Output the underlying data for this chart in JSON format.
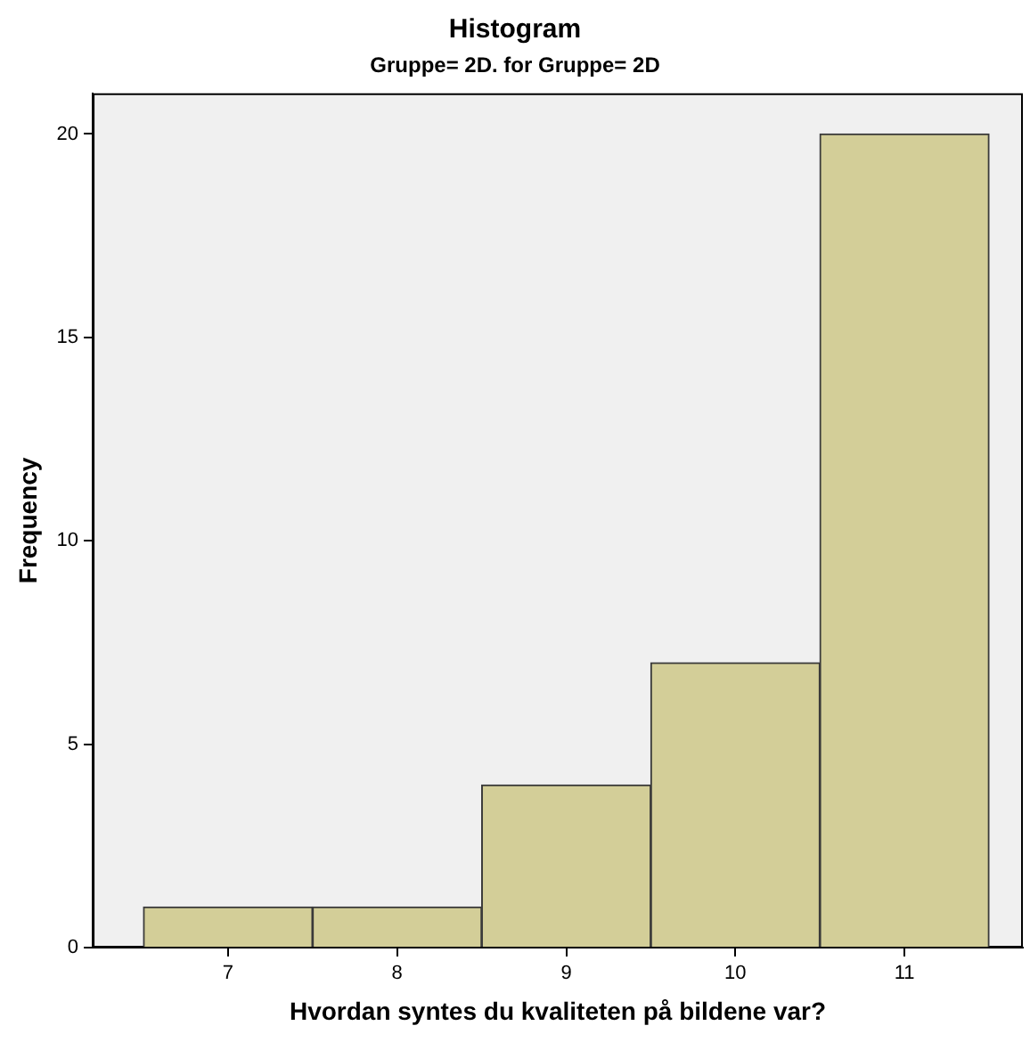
{
  "chart_data": {
    "type": "histogram",
    "title": "Histogram",
    "subtitle": "Gruppe= 2D. for Gruppe= 2D",
    "xlabel": "Hvordan syntes du kvaliteten på bildene var?",
    "ylabel": "Frequency",
    "bins": [
      6.5,
      7.5,
      8.5,
      9.5,
      10.5,
      11.5
    ],
    "values": [
      1,
      1,
      4,
      7,
      20
    ],
    "color": "#d3ce98",
    "xlim": [
      6.2,
      11.7
    ],
    "xticks": [
      7,
      8,
      9,
      10,
      11
    ],
    "ylim": [
      0,
      21
    ],
    "yticks": [
      0,
      5,
      10,
      15,
      20
    ],
    "grid": false,
    "legend": false
  }
}
